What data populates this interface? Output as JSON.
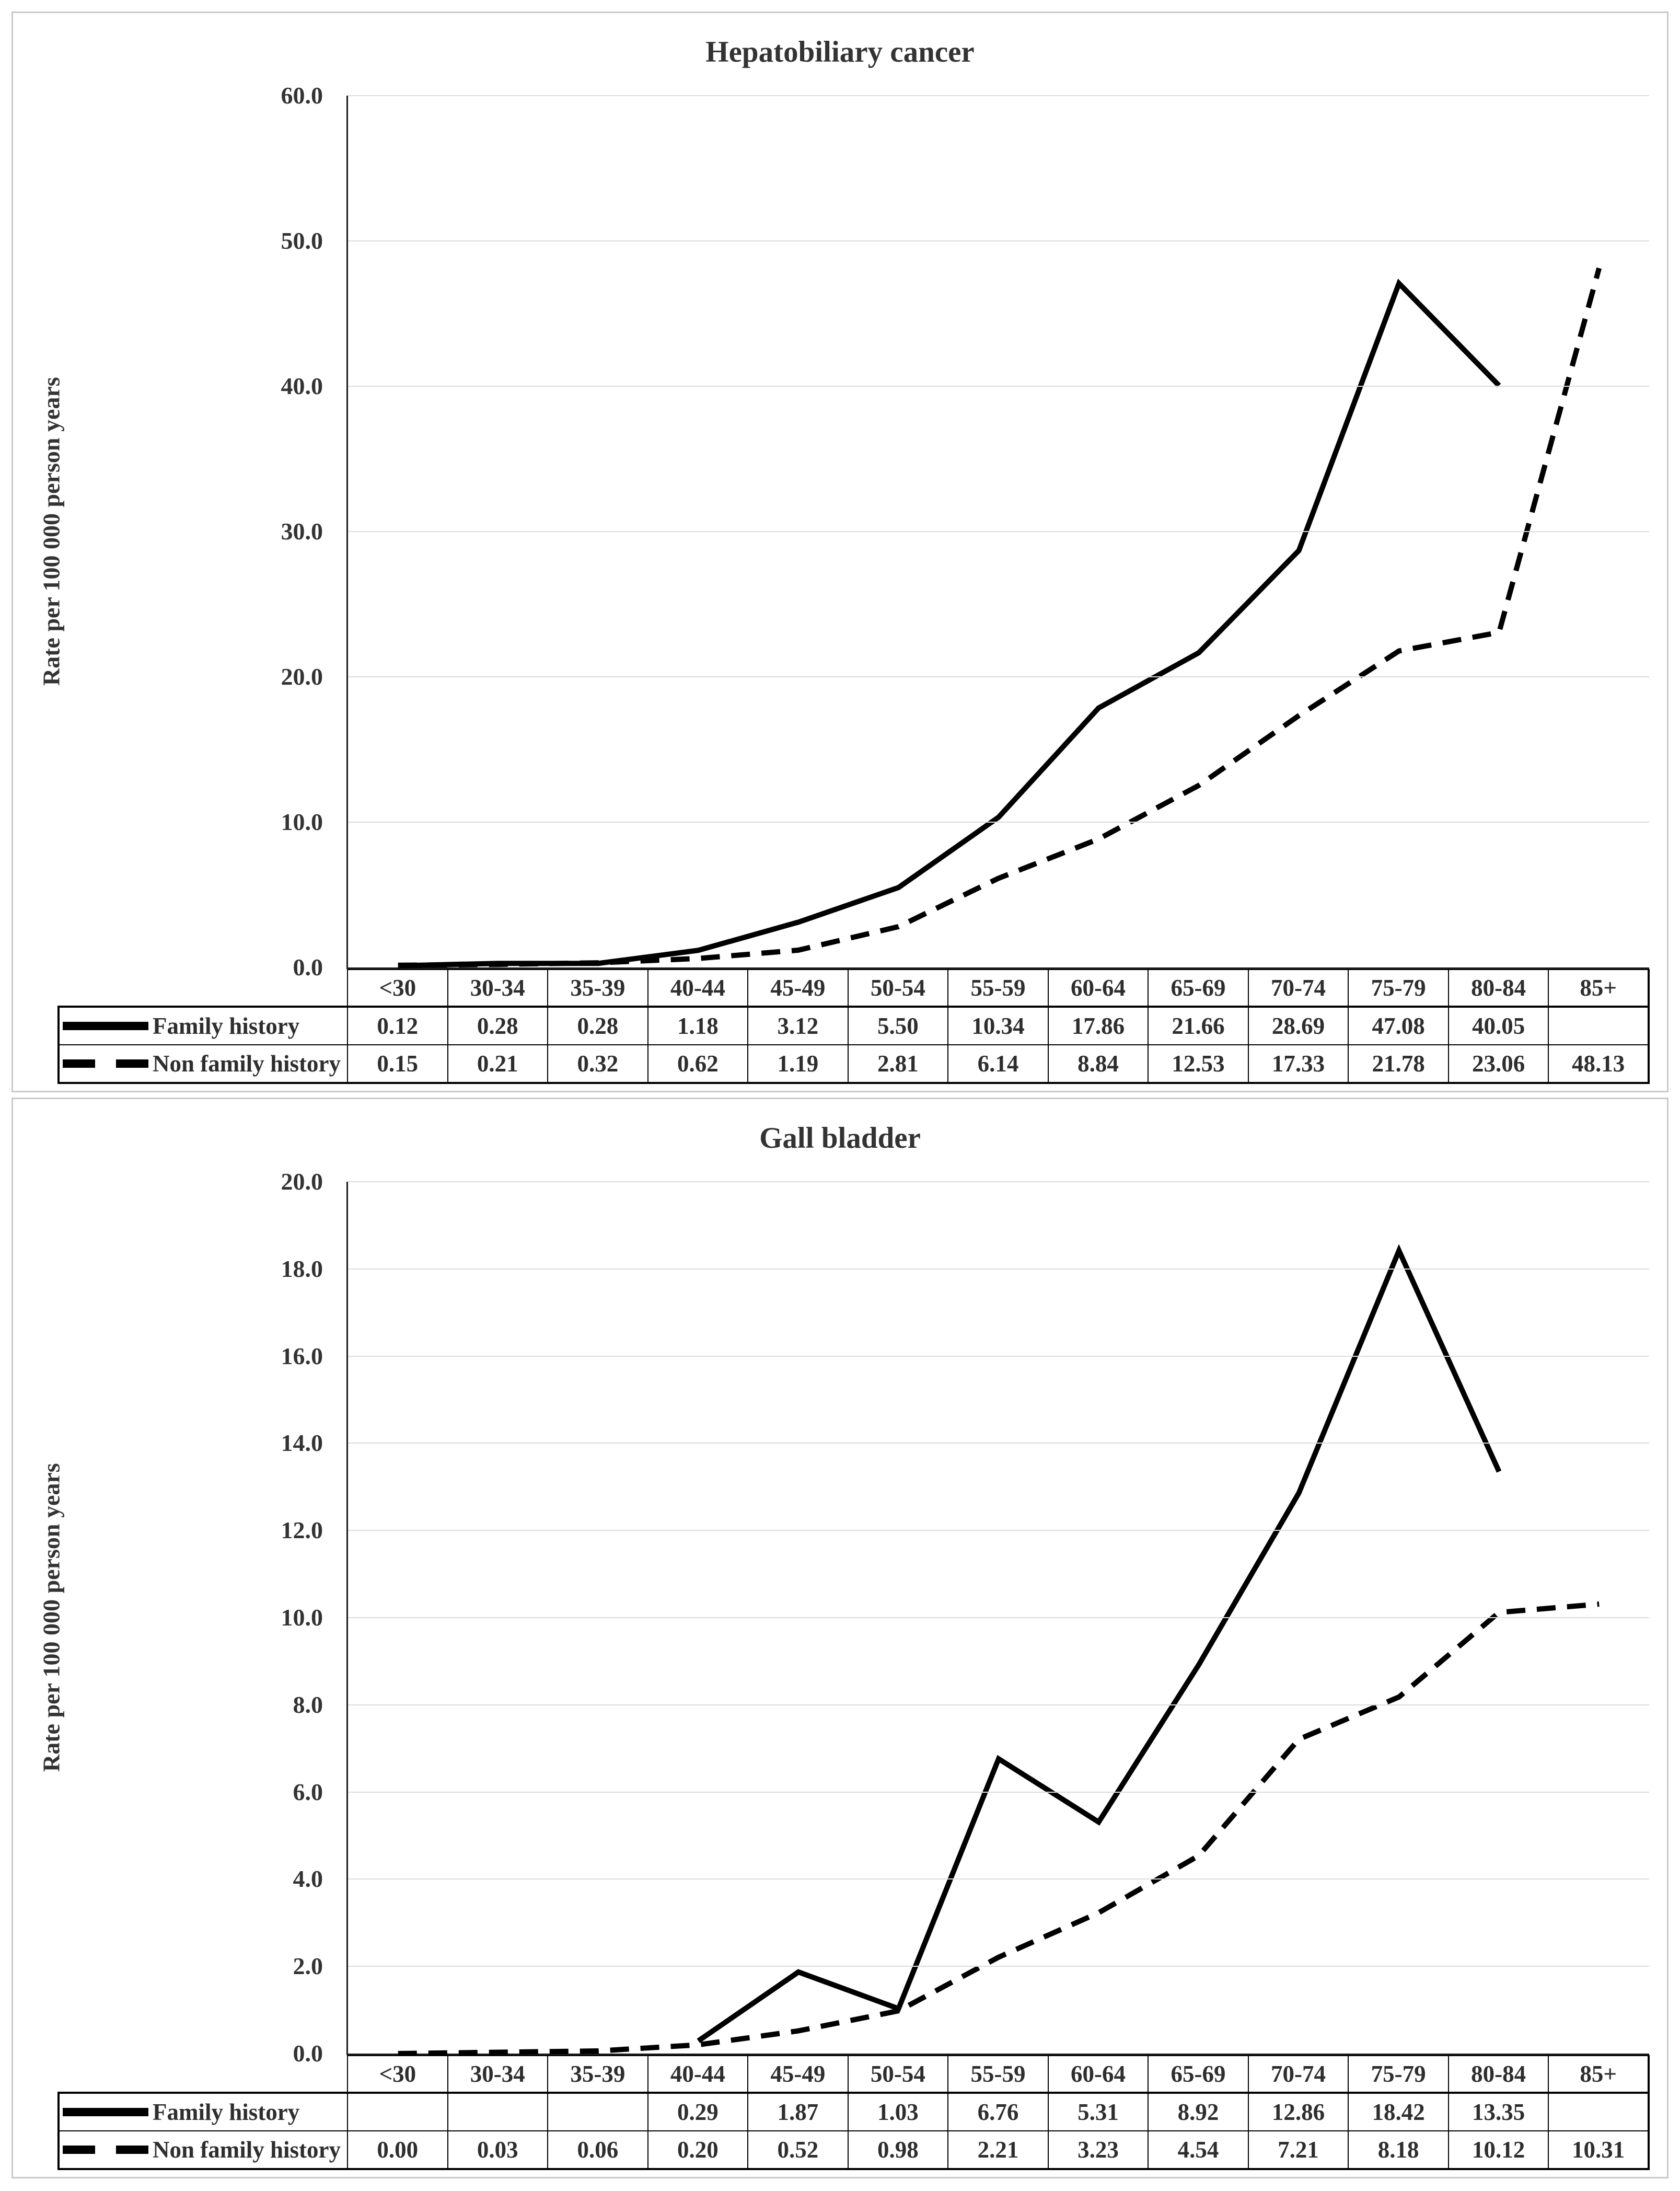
{
  "colors": {
    "line": "#000000",
    "gridline": "#dcdcdc",
    "table_border": "#000000",
    "panel_border": "#c9c9c9",
    "text": "#333333"
  },
  "chart_data": [
    {
      "type": "line",
      "title": "Hepatobiliary cancer",
      "ylabel": "Rate per 100 000 person years",
      "ylim": [
        0,
        60
      ],
      "ytick_step": 10,
      "grid": true,
      "legend_position": "table-left-column",
      "categories": [
        "<30",
        "30-34",
        "35-39",
        "40-44",
        "45-49",
        "50-54",
        "55-59",
        "60-64",
        "65-69",
        "70-74",
        "75-79",
        "80-84",
        "85+"
      ],
      "series": [
        {
          "name": "Family history",
          "line_style": "solid",
          "values": [
            0.12,
            0.28,
            0.28,
            1.18,
            3.12,
            5.5,
            10.34,
            17.86,
            21.66,
            28.69,
            47.08,
            40.05,
            null
          ]
        },
        {
          "name": "Non family history",
          "line_style": "dashed",
          "values": [
            0.15,
            0.21,
            0.32,
            0.62,
            1.19,
            2.81,
            6.14,
            8.84,
            12.53,
            17.33,
            21.78,
            23.06,
            48.13
          ]
        }
      ]
    },
    {
      "type": "line",
      "title": "Gall bladder",
      "ylabel": "Rate per 100 000 person years",
      "ylim": [
        0,
        20
      ],
      "ytick_step": 2,
      "grid": true,
      "legend_position": "table-left-column",
      "categories": [
        "<30",
        "30-34",
        "35-39",
        "40-44",
        "45-49",
        "50-54",
        "55-59",
        "60-64",
        "65-69",
        "70-74",
        "75-79",
        "80-84",
        "85+"
      ],
      "series": [
        {
          "name": "Family history",
          "line_style": "solid",
          "values": [
            null,
            null,
            null,
            0.29,
            1.87,
            1.03,
            6.76,
            5.31,
            8.92,
            12.86,
            18.42,
            13.35,
            null
          ]
        },
        {
          "name": "Non family history",
          "line_style": "dashed",
          "values": [
            0.0,
            0.03,
            0.06,
            0.2,
            0.52,
            0.98,
            2.21,
            3.23,
            4.54,
            7.21,
            8.18,
            10.12,
            10.31
          ]
        }
      ]
    }
  ]
}
